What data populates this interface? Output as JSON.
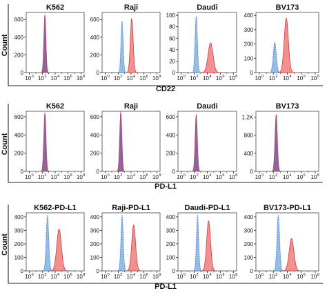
{
  "chart_data": [
    {
      "type": "area",
      "ylabel": "Count",
      "xlabel": "CD22",
      "series_colors": {
        "control": "#6fa6de",
        "stained": "#ee6b6b",
        "overlap": "#7a4a86"
      },
      "panels": [
        {
          "title": "K562",
          "yticks": [
            "0",
            "200",
            "400",
            "600"
          ],
          "ymax": 680,
          "peaks": [
            {
              "role": "overlap",
              "mu": 2.4,
              "sigma": 0.16,
              "height": 650
            }
          ]
        },
        {
          "title": "Raji",
          "yticks": [
            "0",
            "200",
            "400",
            "600"
          ],
          "ymax": 680,
          "peaks": [
            {
              "role": "control",
              "mu": 2.6,
              "sigma": 0.17,
              "height": 580
            },
            {
              "role": "stained",
              "mu": 4.1,
              "sigma": 0.22,
              "height": 610
            }
          ]
        },
        {
          "title": "Daudi",
          "yticks": [
            "0",
            "20",
            "40",
            "60",
            "80",
            "100"
          ],
          "ymax": 105,
          "peaks": [
            {
              "role": "control",
              "mu": 2.3,
              "sigma": 0.18,
              "height": 98
            },
            {
              "role": "stained",
              "mu": 4.5,
              "sigma": 0.38,
              "height": 52
            }
          ]
        },
        {
          "title": "BV173",
          "yticks": [
            "0",
            "100",
            "200",
            "300",
            "400"
          ],
          "ymax": 420,
          "peaks": [
            {
              "role": "control",
              "mu": 2.2,
              "sigma": 0.22,
              "height": 210
            },
            {
              "role": "stained",
              "mu": 3.85,
              "sigma": 0.3,
              "height": 380
            }
          ]
        }
      ],
      "xticks": [
        "0",
        "2",
        "4",
        "6",
        "8"
      ]
    },
    {
      "type": "area",
      "ylabel": "Count",
      "xlabel": "PD-L1",
      "series_colors": {
        "control": "#6fa6de",
        "stained": "#ee6b6b",
        "overlap": "#7a4a86"
      },
      "panels": [
        {
          "title": "K562",
          "yticks": [
            "0",
            "200",
            "400",
            "600"
          ],
          "ymax": 660,
          "peaks": [
            {
              "role": "overlap",
              "mu": 2.4,
              "sigma": 0.17,
              "height": 640
            }
          ]
        },
        {
          "title": "Raji",
          "yticks": [
            "0",
            "200",
            "400",
            "600"
          ],
          "ymax": 660,
          "peaks": [
            {
              "role": "overlap",
              "mu": 2.4,
              "sigma": 0.17,
              "height": 650
            }
          ]
        },
        {
          "title": "Daudi",
          "yticks": [
            "0",
            "200",
            "400",
            "600"
          ],
          "ymax": 660,
          "peaks": [
            {
              "role": "overlap",
              "mu": 2.3,
              "sigma": 0.17,
              "height": 620
            }
          ]
        },
        {
          "title": "BV173",
          "yticks": [
            "0",
            "400",
            "800",
            "1.2K"
          ],
          "ymax": 1330,
          "peaks": [
            {
              "role": "overlap",
              "mu": 2.4,
              "sigma": 0.17,
              "height": 1250
            }
          ]
        }
      ],
      "xticks": [
        "0",
        "2",
        "4",
        "6",
        "8"
      ]
    },
    {
      "type": "area",
      "ylabel": "Count",
      "xlabel": "PD-L1",
      "series_colors": {
        "control": "#6fa6de",
        "stained": "#ee6b6b",
        "overlap": "#7a4a86"
      },
      "panels": [
        {
          "title": "K562-PD-L1",
          "yticks": [
            "0",
            "100",
            "200",
            "300",
            "400"
          ],
          "ymax": 430,
          "peaks": [
            {
              "role": "control",
              "mu": 2.8,
              "sigma": 0.2,
              "height": 410
            },
            {
              "role": "stained",
              "mu": 4.6,
              "sigma": 0.36,
              "height": 310
            }
          ]
        },
        {
          "title": "Raji-PD-L1",
          "yticks": [
            "0",
            "100",
            "200",
            "300",
            "400"
          ],
          "ymax": 430,
          "peaks": [
            {
              "role": "control",
              "mu": 2.6,
              "sigma": 0.18,
              "height": 410
            },
            {
              "role": "stained",
              "mu": 4.4,
              "sigma": 0.3,
              "height": 340
            }
          ]
        },
        {
          "title": "Daudi-PD-L1",
          "yticks": [
            "0",
            "100",
            "200",
            "300",
            "400"
          ],
          "ymax": 430,
          "peaks": [
            {
              "role": "control",
              "mu": 2.5,
              "sigma": 0.17,
              "height": 410
            },
            {
              "role": "stained",
              "mu": 4.2,
              "sigma": 0.3,
              "height": 370
            }
          ]
        },
        {
          "title": "BV173-PD-L1",
          "yticks": [
            "0",
            "100",
            "200",
            "300",
            "400"
          ],
          "ymax": 430,
          "peaks": [
            {
              "role": "control",
              "mu": 2.7,
              "sigma": 0.19,
              "height": 410
            },
            {
              "role": "stained",
              "mu": 4.6,
              "sigma": 0.34,
              "height": 240
            }
          ]
        }
      ],
      "xticks": [
        "0",
        "2",
        "4",
        "6",
        "8"
      ]
    }
  ]
}
